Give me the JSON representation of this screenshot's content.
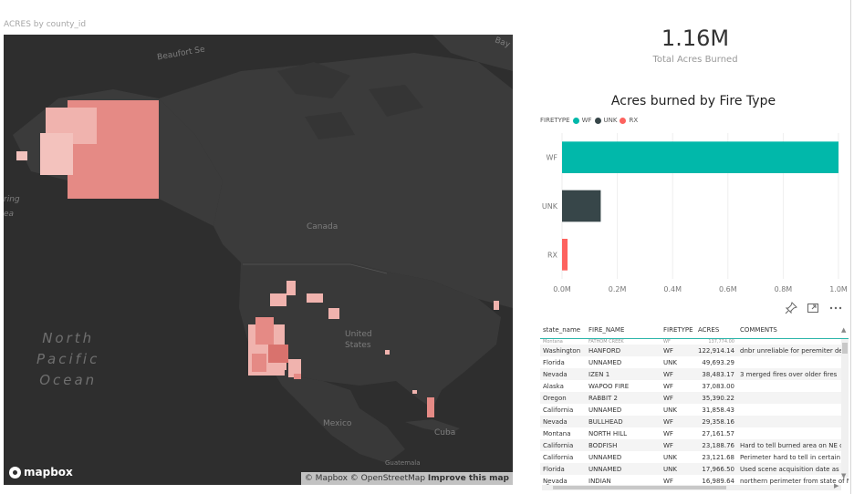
{
  "map": {
    "title": "ACRES by county_id",
    "labels": {
      "beaufort": "Beaufort Se",
      "bay": "Bay",
      "canada": "Canada",
      "united_states_1": "United",
      "united_states_2": "States",
      "mexico": "Mexico",
      "cuba": "Cuba",
      "guatemala": "Guatemala",
      "ring": "ring",
      "ea": "ea"
    },
    "ocean_lines": [
      "North",
      "Pacific",
      "Ocean"
    ],
    "logo": "mapbox",
    "attribution_prefix": "© Mapbox © OpenStreetMap",
    "attribution_link": "Improve this map"
  },
  "kpi": {
    "value": "1.16M",
    "label": "Total Acres Burned"
  },
  "bar_chart": {
    "title": "Acres burned by Fire Type",
    "legend_title": "FIRETYPE",
    "legend": [
      {
        "name": "WF",
        "color": "#01b8aa"
      },
      {
        "name": "UNK",
        "color": "#374649"
      },
      {
        "name": "RX",
        "color": "#fd625e"
      }
    ]
  },
  "chart_data": {
    "type": "bar",
    "orientation": "horizontal",
    "categories": [
      "WF",
      "UNK",
      "RX"
    ],
    "values": [
      1.0,
      0.14,
      0.02
    ],
    "colors": [
      "#01b8aa",
      "#374649",
      "#fd625e"
    ],
    "x_ticks": [
      "0.0M",
      "0.2M",
      "0.4M",
      "0.6M",
      "0.8M",
      "1.0M"
    ],
    "xlim": [
      0,
      1.0
    ],
    "title": "Acres burned by Fire Type",
    "grid": true
  },
  "visual_icons": [
    "pin-icon",
    "focus-mode-icon",
    "more-options-icon"
  ],
  "table": {
    "columns": [
      "state_name",
      "FIRE_NAME",
      "FIRETYPE",
      "ACRES",
      "COMMENTS"
    ],
    "cut_row": [
      "Montana",
      "FATHOM CREEK",
      "WF",
      "137,774.00",
      ""
    ],
    "rows": [
      [
        "Washington",
        "HANFORD",
        "WF",
        "122,914.14",
        "dnbr unreliable for peremiter delineation"
      ],
      [
        "Florida",
        "UNNAMED",
        "UNK",
        "49,693.29",
        ""
      ],
      [
        "Nevada",
        "IZEN 1",
        "WF",
        "38,483.17",
        "3 merged fires over older fires"
      ],
      [
        "Alaska",
        "WAPOO FIRE",
        "WF",
        "37,083.00",
        ""
      ],
      [
        "Oregon",
        "RABBIT 2",
        "WF",
        "35,390.22",
        ""
      ],
      [
        "California",
        "UNNAMED",
        "UNK",
        "31,858.43",
        ""
      ],
      [
        "Nevada",
        "BULLHEAD",
        "WF",
        "29,358.16",
        ""
      ],
      [
        "Montana",
        "NORTH HILL",
        "WF",
        "27,161.57",
        ""
      ],
      [
        "California",
        "BODFISH",
        "WF",
        "23,188.76",
        "Hard to tell burned area on NE corner"
      ],
      [
        "California",
        "UNNAMED",
        "UNK",
        "23,121.68",
        "Perimeter hard to tell in certain areas"
      ],
      [
        "Florida",
        "UNNAMED",
        "UNK",
        "17,966.50",
        "Used scene acquisition date as start"
      ],
      [
        "Nevada",
        "INDIAN",
        "WF",
        "16,989.64",
        "northern perimeter from state of Nevada"
      ]
    ]
  }
}
